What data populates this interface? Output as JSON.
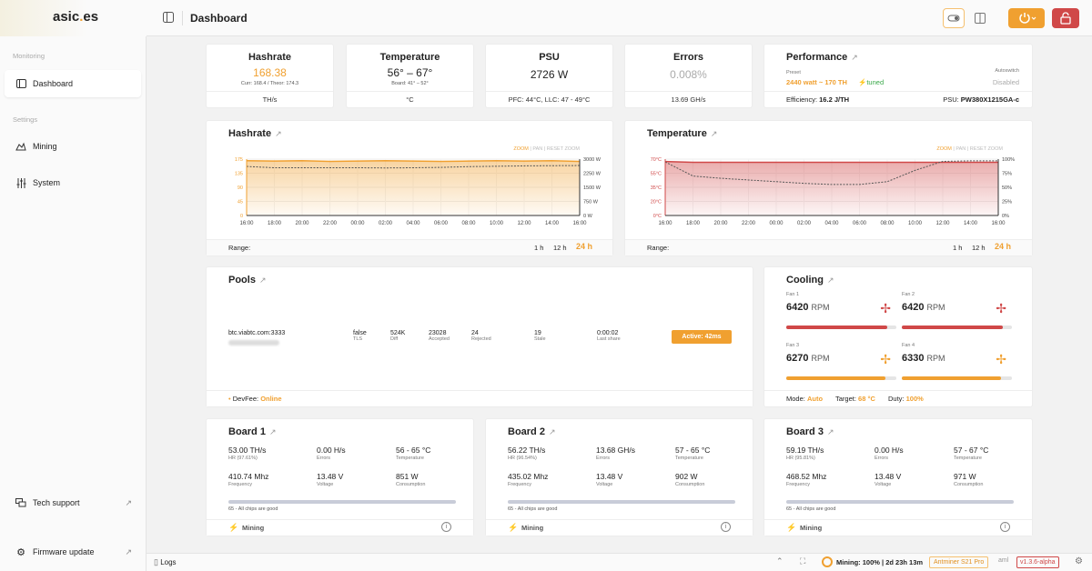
{
  "app": {
    "logo_main": "asic",
    "logo_dot": ".",
    "logo_tld": "es",
    "page_title": "Dashboard"
  },
  "sidebar": {
    "monitoring_section": "Monitoring",
    "settings_section": "Settings",
    "items": [
      {
        "label": "Dashboard"
      },
      {
        "label": "Mining"
      },
      {
        "label": "System"
      }
    ],
    "tech_support": "Tech support",
    "firmware_update": "Firmware update"
  },
  "stats": {
    "hashrate": {
      "title": "Hashrate",
      "value": "168.38",
      "sub": "Curr: 168.4 / Theor: 174.3",
      "unit": "TH/s"
    },
    "temperature": {
      "title": "Temperature",
      "value": "56° – 67°",
      "sub": "Board: 41° – 52°",
      "unit": "°C"
    },
    "psu": {
      "title": "PSU",
      "value": "2726 W",
      "footer": "PFC: 44°C, LLC: 47 - 49°C"
    },
    "errors": {
      "title": "Errors",
      "value": "0.008%",
      "footer": "13.69 GH/s"
    },
    "performance": {
      "title": "Performance",
      "preset_label": "Preset",
      "preset_value": "2440 watt ~ 170 TH",
      "tuned": "tuned",
      "autoswitch_label": "Autoswitch",
      "autoswitch_value": "Disabled",
      "efficiency_label": "Efficiency:",
      "efficiency_value": "16.2 J/TH",
      "psu_label": "PSU:",
      "psu_value": "PW380X1215GA-c"
    }
  },
  "chart_common": {
    "zoom": "ZOOM",
    "pan": "PAN",
    "reset": "RESET ZOOM",
    "range_label": "Range:",
    "r1": "1 h",
    "r2": "12 h",
    "r3": "24 h",
    "x_ticks": [
      "16:00",
      "18:00",
      "20:00",
      "22:00",
      "00:00",
      "02:00",
      "04:00",
      "06:00",
      "08:00",
      "10:00",
      "12:00",
      "14:00",
      "16:00"
    ]
  },
  "chart_data": [
    {
      "type": "area",
      "title": "Hashrate",
      "x": [
        "16:00",
        "18:00",
        "20:00",
        "22:00",
        "00:00",
        "02:00",
        "04:00",
        "06:00",
        "08:00",
        "10:00",
        "12:00",
        "14:00",
        "16:00"
      ],
      "y_left_ticks": [
        "175",
        "135",
        "90",
        "45",
        "0"
      ],
      "y_right_ticks": [
        "3000 W",
        "2250 W",
        "1500 W",
        "750 W",
        "0 W"
      ],
      "ylim": [
        0,
        175
      ],
      "y2lim": [
        0,
        3000
      ],
      "series": [
        {
          "values": [
            170,
            169,
            170,
            168,
            169,
            170,
            169,
            168,
            169,
            170,
            169,
            170,
            168
          ],
          "color": "#f0a030"
        },
        {
          "values": [
            2610,
            2540,
            2540,
            2540,
            2540,
            2530,
            2540,
            2560,
            2600,
            2620,
            2640,
            2650,
            2660
          ],
          "color": "#555",
          "axis": "right",
          "dashed": true
        }
      ],
      "grid": true
    },
    {
      "type": "area",
      "title": "Temperature",
      "x": [
        "16:00",
        "18:00",
        "20:00",
        "22:00",
        "00:00",
        "02:00",
        "04:00",
        "06:00",
        "08:00",
        "10:00",
        "12:00",
        "14:00",
        "16:00"
      ],
      "y_left_ticks": [
        "70°C",
        "55°C",
        "35°C",
        "20°C",
        "0°C"
      ],
      "y_right_ticks": [
        "100%",
        "75%",
        "50%",
        "25%",
        "0%"
      ],
      "ylim": [
        0,
        70
      ],
      "y2lim": [
        0,
        100
      ],
      "series": [
        {
          "values": [
            67,
            66,
            66,
            66,
            66,
            66,
            66,
            66,
            66,
            66,
            66,
            66,
            66
          ],
          "color": "#d04848"
        },
        {
          "values": [
            95,
            70,
            66,
            63,
            60,
            57,
            55,
            55,
            60,
            80,
            96,
            97,
            97
          ],
          "color": "#555",
          "axis": "right",
          "dashed": true
        }
      ],
      "grid": true
    }
  ],
  "pools": {
    "title": "Pools",
    "url": "btc.viabtc.com:3333",
    "tls": "false",
    "tls_label": "TLS",
    "diff": "524K",
    "diff_label": "Diff",
    "accepted": "23028",
    "accepted_label": "Accepted",
    "rejected": "24",
    "rejected_label": "Rejected",
    "stale": "19",
    "stale_label": "Stale",
    "last_share": "0:00:02",
    "last_share_label": "Last share",
    "status": "Active: 42ms",
    "devfee_label": "DevFee:",
    "devfee_value": "Online"
  },
  "cooling": {
    "title": "Cooling",
    "fans": [
      {
        "label": "Fan 1",
        "rpm": "6420",
        "unit": "RPM",
        "level": 0.92,
        "color": "#d04848"
      },
      {
        "label": "Fan 2",
        "rpm": "6420",
        "unit": "RPM",
        "level": 0.92,
        "color": "#d04848"
      },
      {
        "label": "Fan 3",
        "rpm": "6270",
        "unit": "RPM",
        "level": 0.9,
        "color": "#f0a030"
      },
      {
        "label": "Fan 4",
        "rpm": "6330",
        "unit": "RPM",
        "level": 0.9,
        "color": "#f0a030"
      }
    ],
    "mode_label": "Mode:",
    "mode_value": "Auto",
    "target_label": "Target:",
    "target_value": "68 °C",
    "duty_label": "Duty:",
    "duty_value": "100%"
  },
  "boards": [
    {
      "title": "Board 1",
      "hashrate": "53.00 TH/s",
      "hr_pct": "HR (97.61%)",
      "errors": "0.00 H/s",
      "errors_label": "Errors",
      "temp": "56 - 65 °C",
      "temp_label": "Temperature",
      "freq": "410.74 Mhz",
      "freq_label": "Frequency",
      "voltage": "13.48 V",
      "voltage_label": "Voltage",
      "consumption": "851 W",
      "consumption_label": "Consumption",
      "chips": "65 - All chips are good",
      "status": "Mining"
    },
    {
      "title": "Board 2",
      "hashrate": "56.22 TH/s",
      "hr_pct": "HR (96.54%)",
      "errors": "13.68 GH/s",
      "errors_label": "Errors",
      "temp": "57 - 65 °C",
      "temp_label": "Temperature",
      "freq": "435.02 Mhz",
      "freq_label": "Frequency",
      "voltage": "13.48 V",
      "voltage_label": "Voltage",
      "consumption": "902 W",
      "consumption_label": "Consumption",
      "chips": "65 - All chips are good",
      "status": "Mining"
    },
    {
      "title": "Board 3",
      "hashrate": "59.19 TH/s",
      "hr_pct": "HR (95.81%)",
      "errors": "0.00 H/s",
      "errors_label": "Errors",
      "temp": "57 - 67 °C",
      "temp_label": "Temperature",
      "freq": "468.52 Mhz",
      "freq_label": "Frequency",
      "voltage": "13.48 V",
      "voltage_label": "Voltage",
      "consumption": "971 W",
      "consumption_label": "Consumption",
      "chips": "65 - All chips are good",
      "status": "Mining"
    }
  ],
  "statusbar": {
    "logs": "Logs",
    "mining": "Mining: 100% | 2d 23h 13m",
    "model": "Antminer S21 Pro",
    "aml": "aml",
    "version": "v1.3.6-alpha"
  },
  "colors": {
    "accent": "#f0a030",
    "danger": "#d04848"
  }
}
